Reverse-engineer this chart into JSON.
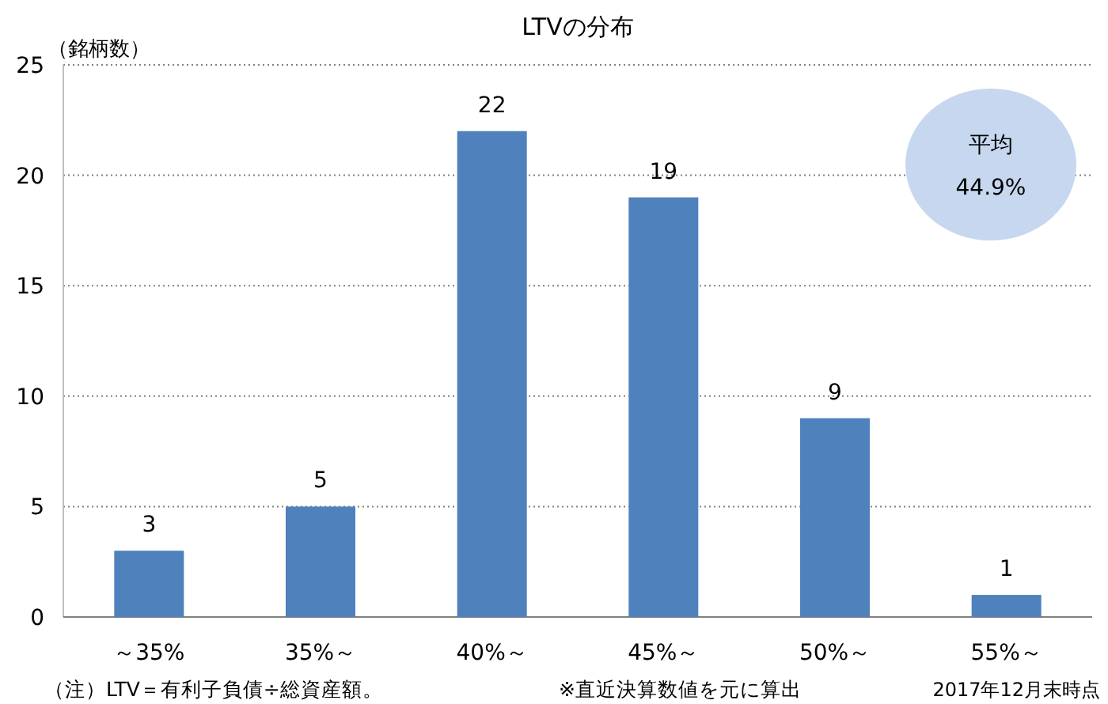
{
  "chart_data": {
    "type": "bar",
    "title": "LTVの分布",
    "ylabel": "（銘柄数）",
    "categories": [
      "～35%",
      "35%～",
      "40%～",
      "45%～",
      "50%～",
      "55%～"
    ],
    "values": [
      3,
      5,
      22,
      19,
      9,
      1
    ],
    "color": "#4f81bd",
    "ylim": [
      0,
      25
    ],
    "yticks": [
      0,
      5,
      10,
      15,
      20,
      25
    ],
    "grid": "y",
    "data_labels": true,
    "annotations": [
      "平均\n44.9%",
      "（注）LTV＝有利子負債÷総資産額。",
      "※直近決算数値を元に算出",
      "2017年12月末時点"
    ]
  }
}
